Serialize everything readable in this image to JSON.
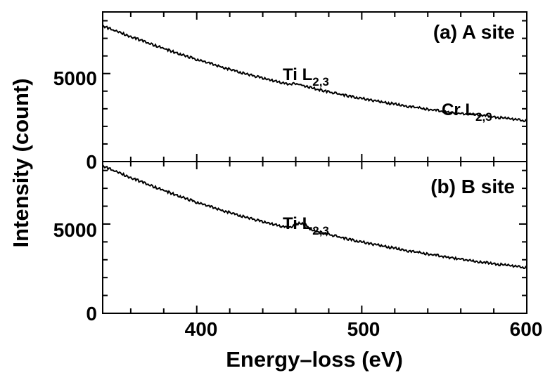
{
  "chart_data": [
    {
      "type": "line",
      "panel_label": "(a) A site",
      "xlim": [
        343,
        600
      ],
      "ylim": [
        0,
        8500
      ],
      "y_ticks": [
        0,
        5000
      ],
      "y_tick_labels": [
        "0",
        "5000"
      ],
      "annotations": [
        {
          "main": "Ti L",
          "sub": "2,3",
          "x": 462,
          "y": 4600
        },
        {
          "main": "Cr L",
          "sub": "2,3",
          "x": 570,
          "y": 2200
        }
      ],
      "series": [
        {
          "x": [
            343,
            350,
            360,
            370,
            380,
            390,
            400,
            410,
            420,
            430,
            440,
            450,
            455,
            460,
            465,
            470,
            480,
            490,
            500,
            510,
            520,
            530,
            540,
            550,
            560,
            565,
            570,
            575,
            580,
            590,
            600
          ],
          "y": [
            7700,
            7450,
            7100,
            6750,
            6420,
            6100,
            5800,
            5520,
            5240,
            4980,
            4740,
            4510,
            4400,
            4430,
            4300,
            4170,
            3960,
            3770,
            3590,
            3420,
            3260,
            3110,
            2970,
            2840,
            2720,
            2690,
            2680,
            2610,
            2540,
            2420,
            2310
          ]
        }
      ]
    },
    {
      "type": "line",
      "panel_label": "(b) B site",
      "xlim": [
        343,
        600
      ],
      "ylim": [
        0,
        8500
      ],
      "y_ticks": [
        0,
        5000
      ],
      "y_tick_labels": [
        "0",
        "5000"
      ],
      "annotations": [
        {
          "main": "Ti L",
          "sub": "2,3",
          "x": 462,
          "y": 5450
        }
      ],
      "series": [
        {
          "x": [
            343,
            350,
            360,
            370,
            380,
            390,
            400,
            410,
            420,
            430,
            440,
            450,
            455,
            458,
            462,
            466,
            470,
            480,
            490,
            500,
            510,
            520,
            530,
            540,
            550,
            560,
            570,
            580,
            590,
            600
          ],
          "y": [
            8250,
            7980,
            7600,
            7230,
            6880,
            6540,
            6220,
            5920,
            5640,
            5380,
            5130,
            4900,
            4800,
            4880,
            5060,
            4950,
            4650,
            4420,
            4200,
            4000,
            3820,
            3640,
            3470,
            3320,
            3170,
            3030,
            2900,
            2780,
            2660,
            2550
          ]
        }
      ]
    }
  ],
  "x_ticks": [
    400,
    500,
    600
  ],
  "x_tick_labels": [
    "400",
    "500",
    "600"
  ],
  "xlabel": "Energy–loss (eV)",
  "ylabel": "Intensity (count)"
}
